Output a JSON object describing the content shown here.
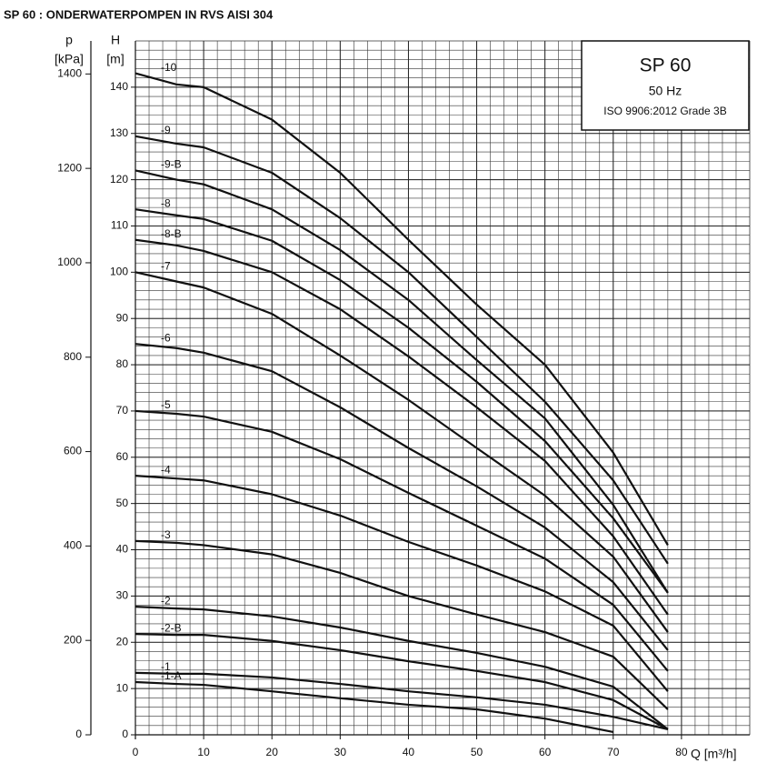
{
  "chart_data": {
    "type": "line",
    "title": "SP 60 : ONDERWATERPOMPEN IN RVS AISI 304",
    "annotations": [
      "SP 60",
      "50 Hz",
      "ISO 9906:2012 Grade 3B"
    ],
    "xlabel": "Q [m³/h]",
    "ylabel": [
      "H",
      "[m]"
    ],
    "y2label": [
      "p",
      "[kPa]"
    ],
    "xlim": [
      0,
      90
    ],
    "xticks": [
      0,
      10,
      20,
      30,
      40,
      50,
      60,
      70,
      80
    ],
    "ylim": [
      0,
      150
    ],
    "yticks": [
      0,
      10,
      20,
      30,
      40,
      50,
      60,
      70,
      80,
      90,
      100,
      110,
      120,
      130,
      140
    ],
    "y2lim": [
      0,
      1470
    ],
    "y2ticks": [
      0,
      200,
      400,
      600,
      800,
      1000,
      1200,
      1400
    ],
    "grid": true,
    "color": "#111111",
    "x": [
      0,
      6,
      10,
      20,
      30,
      40,
      50,
      60,
      70,
      78
    ],
    "series": [
      {
        "name": "-10",
        "values": [
          143,
          140.6,
          140,
          133,
          121.5,
          107,
          93,
          80,
          61,
          41
        ]
      },
      {
        "name": "-9",
        "values": [
          129.4,
          127.8,
          127,
          121.5,
          111.7,
          100,
          86,
          72,
          55,
          37
        ]
      },
      {
        "name": "-9-B",
        "values": [
          122,
          120,
          119,
          113.6,
          104.8,
          94,
          81,
          68.4,
          49.7,
          30.7
        ]
      },
      {
        "name": "-8",
        "values": [
          113.6,
          112.3,
          111.5,
          106.8,
          98.3,
          88,
          76.3,
          63.5,
          46.8,
          30.7
        ]
      },
      {
        "name": "-8-B",
        "values": [
          107,
          105.8,
          104.6,
          100,
          92,
          81.8,
          70.8,
          59.2,
          42.9,
          26
        ]
      },
      {
        "name": "-7",
        "values": [
          100,
          98,
          96.7,
          91,
          82,
          72.4,
          62,
          51.7,
          38.5,
          22.2
        ]
      },
      {
        "name": "-6",
        "values": [
          84.5,
          83.6,
          82.6,
          78.6,
          70.8,
          62,
          53.7,
          44.8,
          33,
          18.3
        ]
      },
      {
        "name": "-5",
        "values": [
          70,
          69.4,
          68.8,
          65.5,
          59.6,
          52.3,
          45.2,
          38.1,
          28.1,
          13.8
        ]
      },
      {
        "name": "-4",
        "values": [
          56,
          55.4,
          55,
          52,
          47.4,
          41.7,
          36.6,
          31,
          23.6,
          9.4
        ]
      },
      {
        "name": "-3",
        "values": [
          41.9,
          41.5,
          41,
          39,
          35,
          30,
          26,
          22.2,
          16.9,
          5.5
        ]
      },
      {
        "name": "-2",
        "values": [
          27.7,
          27.3,
          27.1,
          25.6,
          23.2,
          20.3,
          17.7,
          14.7,
          10.4,
          1.2
        ]
      },
      {
        "name": "-2-B",
        "values": [
          21.8,
          21.6,
          21.6,
          20.3,
          18.3,
          15.9,
          13.8,
          11.4,
          7.5,
          1.2
        ]
      },
      {
        "name": "-1",
        "values": [
          13.4,
          13.2,
          13.2,
          12.4,
          11,
          9.4,
          8.1,
          6.5,
          3.9,
          1.2
        ]
      },
      {
        "name": "-1-A",
        "values": [
          11.4,
          11,
          10.8,
          9.4,
          7.9,
          6.5,
          5.5,
          3.5,
          0.6,
          null
        ]
      }
    ]
  }
}
